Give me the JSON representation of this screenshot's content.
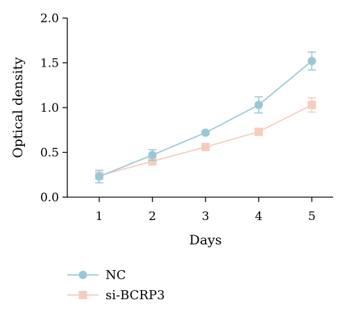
{
  "chart_data": {
    "type": "line",
    "title": "",
    "xlabel": "Days",
    "ylabel": "Optical density",
    "x": [
      1,
      2,
      3,
      4,
      5
    ],
    "xlim": [
      0.4,
      5.4
    ],
    "ylim": [
      0,
      2.0
    ],
    "yticks": [
      "0.0",
      "0.5",
      "1.0",
      "1.5",
      "2.0"
    ],
    "xticks": [
      "1",
      "2",
      "3",
      "4",
      "5"
    ],
    "grid": false,
    "legend_position": "bottom-left",
    "series": [
      {
        "name": "NC",
        "marker": "circle",
        "color": "#98c8d8",
        "values": [
          0.23,
          0.47,
          0.72,
          1.03,
          1.52
        ],
        "errors": [
          0.07,
          0.06,
          0.02,
          0.09,
          0.1
        ]
      },
      {
        "name": "si-BCRP3",
        "marker": "square",
        "color": "#f5cdbd",
        "values": [
          0.24,
          0.4,
          0.56,
          0.73,
          1.03
        ],
        "errors": [
          0.04,
          0.03,
          0.02,
          0.03,
          0.08
        ]
      }
    ]
  }
}
